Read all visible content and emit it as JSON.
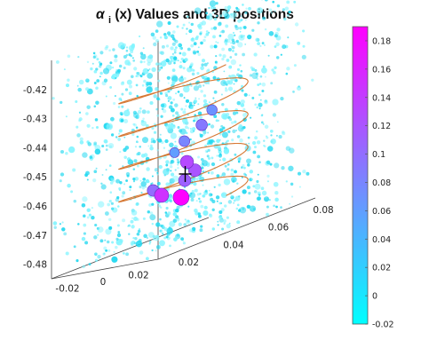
{
  "chart_data": {
    "type": "scatter",
    "dimensions": "3d",
    "title": {
      "greek": "α",
      "subscript": "i",
      "rest": "(x) Values and 3D positions"
    },
    "x_ticks": [
      "-0.02",
      "0",
      "0.02"
    ],
    "y_ticks": [
      "0.02",
      "0.04",
      "0.06",
      "0.08"
    ],
    "z_ticks": [
      "-0.42",
      "-0.43",
      "-0.44",
      "-0.45",
      "-0.46",
      "-0.47",
      "-0.48"
    ],
    "colorbar": {
      "range": [
        -0.02,
        0.19
      ],
      "ticks": [
        "0.18",
        "0.16",
        "0.14",
        "0.12",
        "0.1",
        "0.08",
        "0.06",
        "0.04",
        "0.02",
        "0",
        "-0.02"
      ],
      "colors": [
        "#00ffff",
        "#ff00ff"
      ]
    },
    "series": [
      {
        "values": [
          {
            "x": 0.005,
            "y": 0.045,
            "z": -0.47,
            "value": 0.19
          },
          {
            "x": -0.006,
            "y": 0.045,
            "z": -0.468,
            "value": 0.15
          },
          {
            "x": 0.002,
            "y": 0.05,
            "z": -0.459,
            "value": 0.13
          },
          {
            "x": 0.009,
            "y": 0.048,
            "z": -0.462,
            "value": 0.12
          },
          {
            "x": 0.002,
            "y": 0.049,
            "z": -0.465,
            "value": 0.11
          },
          {
            "x": -0.012,
            "y": 0.046,
            "z": -0.466,
            "value": 0.1
          },
          {
            "x": 0.004,
            "y": 0.055,
            "z": -0.448,
            "value": 0.09
          },
          {
            "x": -0.002,
            "y": 0.052,
            "z": -0.452,
            "value": 0.08
          },
          {
            "x": 0.006,
            "y": 0.058,
            "z": -0.444,
            "value": 0.07
          },
          {
            "x": -0.005,
            "y": 0.05,
            "z": -0.455,
            "value": 0.06
          }
        ]
      }
    ],
    "helix": {
      "color": "#d2691e",
      "turns": 4
    },
    "highlight_marker": {
      "symbol": "+",
      "color": "#000000"
    },
    "grid": false
  }
}
